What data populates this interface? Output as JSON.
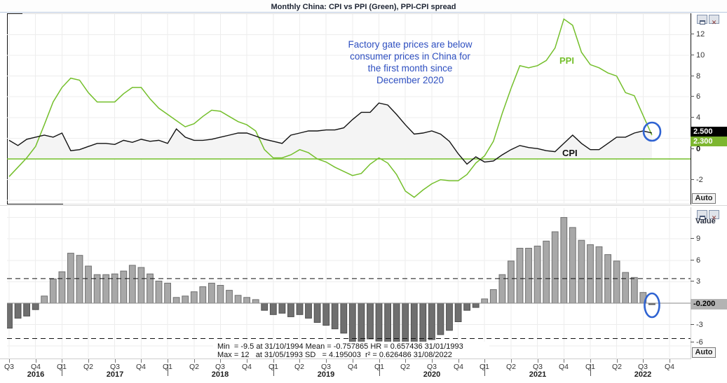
{
  "window": {
    "title": "Monthly China: CPI vs PPI (Green), PPI-CPI spread",
    "auto_button": "Auto"
  },
  "top_panel": {
    "series_labels": {
      "ppi": "PPI",
      "cpi": "CPI"
    },
    "last_values": {
      "cpi": "2.500",
      "ppi": "2.300"
    },
    "annotation_lines": [
      "Factory gate prices are below",
      "consumer prices in China for",
      "the first month since",
      "December 2020"
    ],
    "y_ticks": [
      12,
      10,
      8,
      6,
      4,
      0,
      -2
    ]
  },
  "bottom_panel": {
    "axis_title": "Value",
    "last_value": "-0.200",
    "y_ticks": [
      9,
      6,
      3,
      -3,
      -6
    ],
    "stats_line1": "Min  = -9.5 at 31/10/1994 Mean = -0.757865 HR = 0.657436 31/01/1993",
    "stats_line2": "Max = 12   at 31/05/1993 SD   = 4.195003  r² = 0.626486 31/08/2022"
  },
  "x_axis": {
    "quarters": [
      "Q3",
      "Q4",
      "Q1",
      "Q2",
      "Q3",
      "Q4",
      "Q1",
      "Q2",
      "Q3",
      "Q4",
      "Q1",
      "Q2",
      "Q3",
      "Q4",
      "Q1",
      "Q2",
      "Q3",
      "Q4",
      "Q1",
      "Q2",
      "Q3",
      "Q4",
      "Q1",
      "Q2",
      "Q3",
      "Q4"
    ],
    "years": [
      {
        "label": "2016",
        "start_q": 0
      },
      {
        "label": "2017",
        "start_q": 2
      },
      {
        "label": "2018",
        "start_q": 6
      },
      {
        "label": "2019",
        "start_q": 10
      },
      {
        "label": "2020",
        "start_q": 14
      },
      {
        "label": "2021",
        "start_q": 18
      },
      {
        "label": "2022",
        "start_q": 22
      }
    ]
  },
  "colors": {
    "ppi_green": "#74bf2b",
    "cpi_black": "#111111",
    "annotation_blue": "#2e4fc0",
    "highlight_circle_blue": "#2f63d2",
    "bar_positive": "#a8a8a8",
    "bar_positive_border": "#707070",
    "bar_negative": "#6f6f6f",
    "bar_negative_border": "#4f4f4f",
    "cpi_price_label_bg": "#000000",
    "ppi_price_label_bg": "#7db62f",
    "spread_price_label_bg": "#b3b3b3",
    "grid": "#ededed",
    "cpi_area_fill": "#f4f4f4"
  },
  "chart_data": [
    {
      "type": "line",
      "title": "Monthly China: CPI vs PPI (Green)",
      "x_unit": "month",
      "x_start": "2016-07",
      "x_end": "2022-08",
      "ylim": [
        -4.3,
        14.1
      ],
      "yticks": [
        12,
        10,
        8,
        6,
        4,
        2,
        0,
        -2
      ],
      "zero_line": true,
      "legend": "inline-labels",
      "series": [
        {
          "name": "CPI",
          "color": "#111111",
          "values": [
            1.8,
            1.3,
            1.9,
            2.1,
            2.3,
            2.1,
            2.5,
            0.8,
            0.9,
            1.2,
            1.5,
            1.5,
            1.4,
            1.8,
            1.6,
            1.9,
            1.7,
            1.8,
            1.5,
            2.9,
            2.1,
            1.8,
            1.8,
            1.9,
            2.1,
            2.3,
            2.5,
            2.5,
            2.2,
            1.9,
            1.7,
            1.5,
            2.3,
            2.5,
            2.7,
            2.7,
            2.8,
            2.8,
            3.0,
            3.8,
            4.5,
            4.5,
            5.4,
            5.2,
            4.3,
            3.3,
            2.4,
            2.5,
            2.7,
            2.4,
            1.7,
            0.5,
            -0.5,
            0.2,
            -0.3,
            -0.2,
            0.4,
            0.9,
            1.3,
            1.1,
            1.0,
            0.8,
            0.7,
            1.5,
            2.3,
            1.5,
            0.9,
            0.9,
            1.5,
            2.1,
            2.1,
            2.5,
            2.7,
            2.5
          ]
        },
        {
          "name": "PPI",
          "color": "#74bf2b",
          "values": [
            -1.7,
            -0.8,
            0.1,
            1.2,
            3.3,
            5.5,
            6.9,
            7.8,
            7.6,
            6.4,
            5.5,
            5.5,
            5.5,
            6.3,
            6.9,
            6.9,
            5.8,
            4.9,
            4.3,
            3.7,
            3.1,
            3.4,
            4.1,
            4.7,
            4.6,
            4.1,
            3.6,
            3.3,
            2.7,
            0.9,
            0.1,
            0.1,
            0.4,
            0.9,
            0.6,
            0.0,
            -0.3,
            -0.8,
            -1.2,
            -1.6,
            -1.4,
            -0.5,
            0.1,
            -0.4,
            -1.5,
            -3.1,
            -3.7,
            -3.0,
            -2.4,
            -2.0,
            -2.1,
            -2.1,
            -1.5,
            -0.4,
            0.3,
            1.7,
            4.4,
            6.8,
            9.0,
            8.8,
            9.0,
            9.5,
            10.7,
            13.5,
            12.9,
            10.3,
            9.1,
            8.8,
            8.3,
            8.0,
            6.4,
            6.1,
            4.2,
            2.3
          ]
        }
      ]
    },
    {
      "type": "bar",
      "name": "PPI-CPI spread",
      "x_unit": "month",
      "x_start": "2016-07",
      "x_end": "2022-08",
      "ylim": [
        -7.7,
        13.4
      ],
      "yticks": [
        9,
        6,
        3,
        0,
        -3,
        -6
      ],
      "dashed_lines": [
        3.44,
        -4.95
      ],
      "last_value_label": "-0.200",
      "values": [
        -3.5,
        -2.1,
        -1.8,
        -0.9,
        1.0,
        3.4,
        4.4,
        7.0,
        6.7,
        5.2,
        4.0,
        4.0,
        4.1,
        4.5,
        5.3,
        5.0,
        4.1,
        3.1,
        2.8,
        0.8,
        1.0,
        1.6,
        2.3,
        2.8,
        2.5,
        1.8,
        1.1,
        0.8,
        0.5,
        -1.0,
        -1.6,
        -1.4,
        -1.9,
        -1.6,
        -2.1,
        -2.7,
        -3.1,
        -3.6,
        -4.2,
        -5.4,
        -5.9,
        -5.0,
        -5.3,
        -5.6,
        -5.8,
        -6.4,
        -6.1,
        -5.5,
        -5.1,
        -4.4,
        -3.8,
        -2.6,
        -1.0,
        -0.6,
        0.6,
        1.9,
        4.0,
        5.9,
        7.7,
        7.7,
        8.0,
        8.7,
        10.0,
        12.0,
        10.6,
        8.8,
        8.2,
        7.9,
        6.8,
        5.9,
        4.3,
        3.6,
        1.5,
        -0.2
      ]
    }
  ]
}
